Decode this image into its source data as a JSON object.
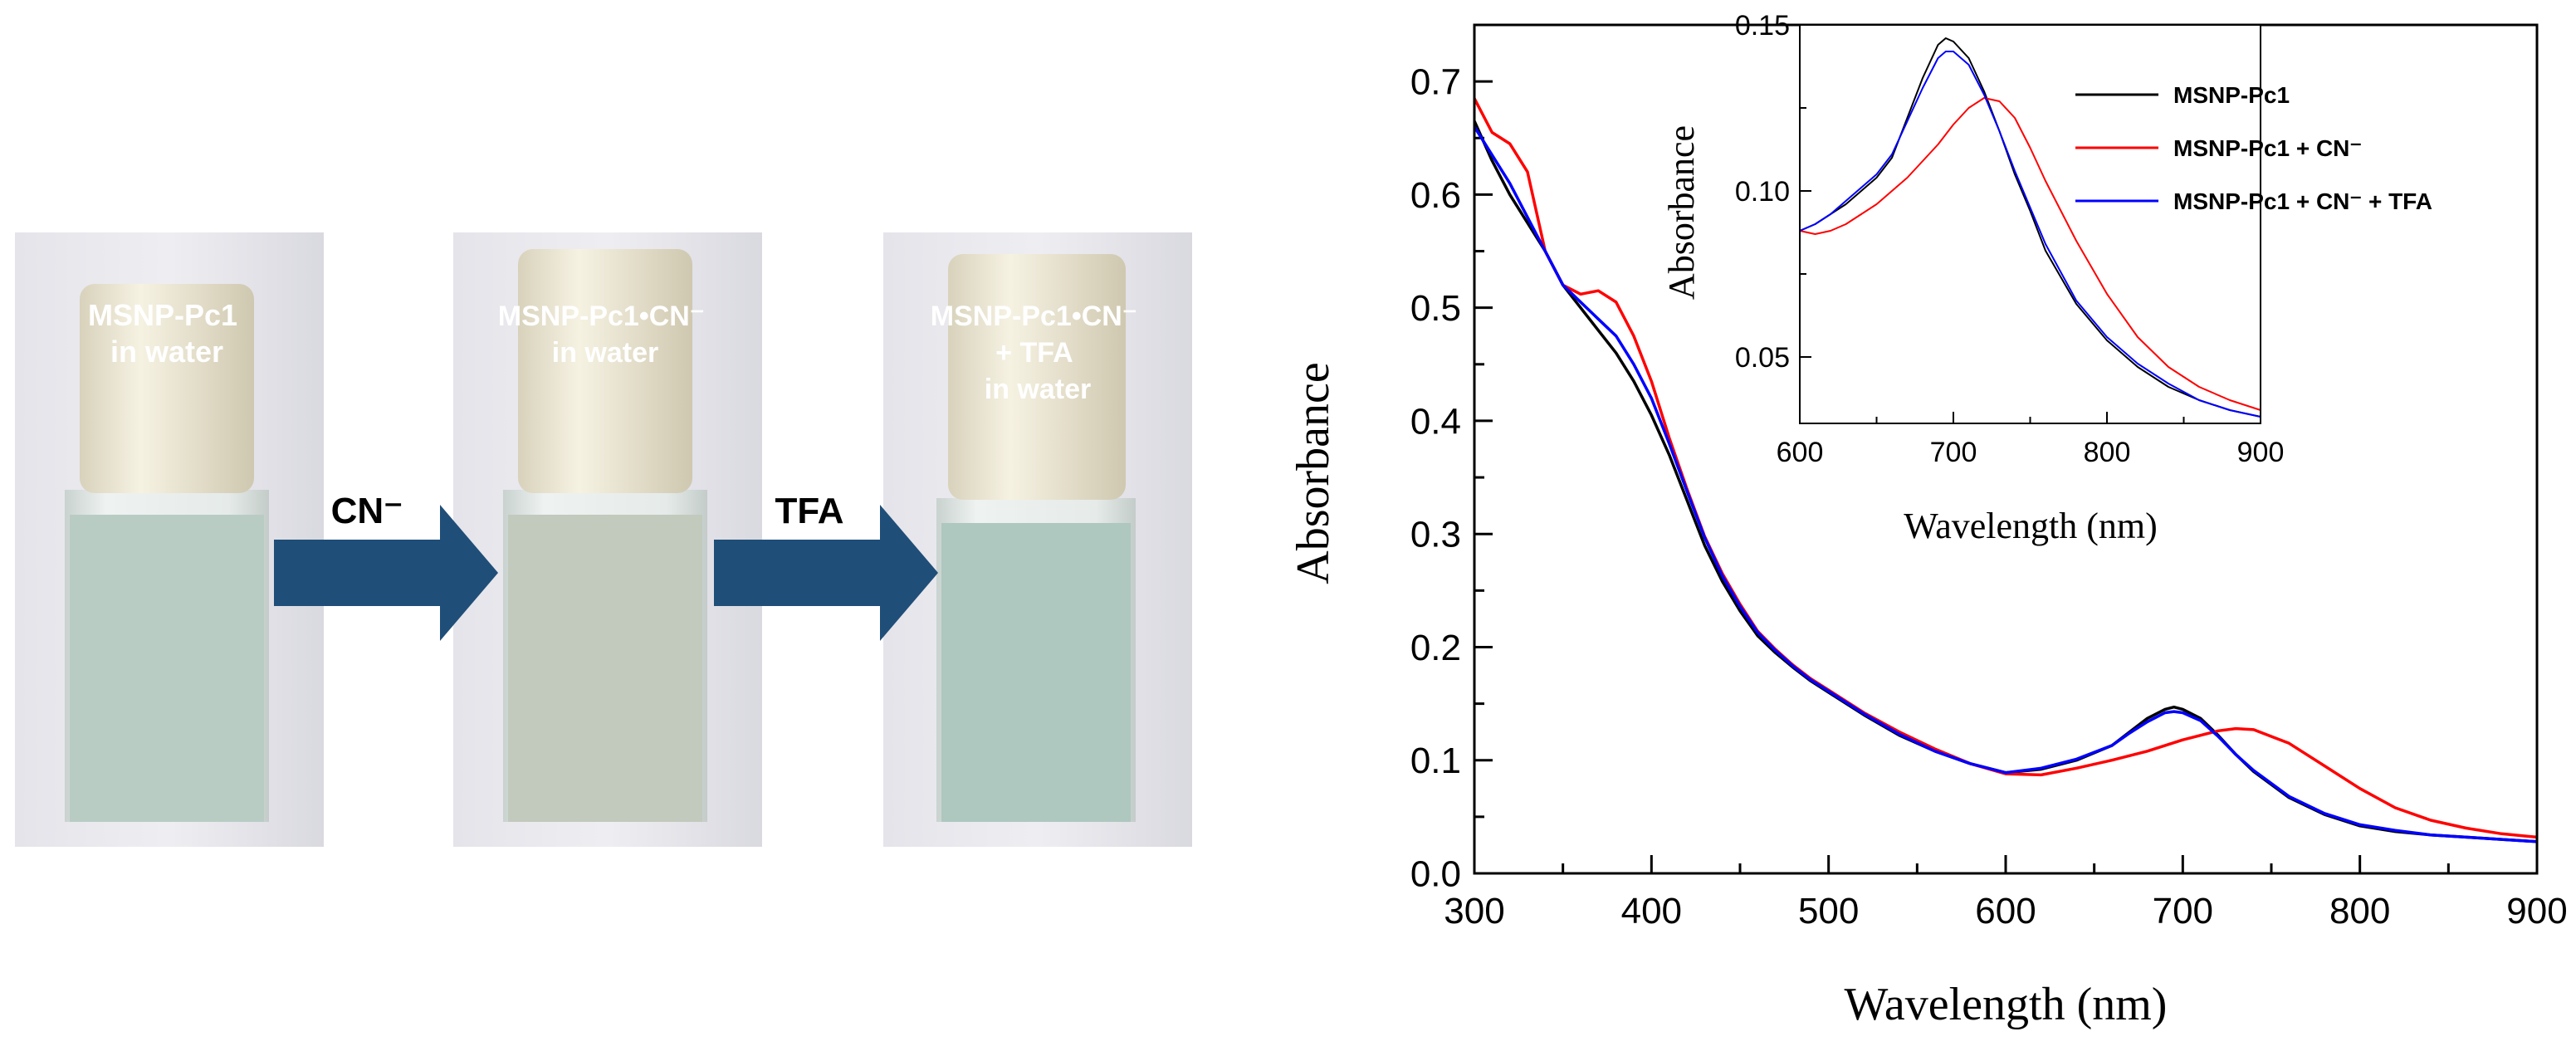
{
  "photos": {
    "vials": [
      {
        "label_lines": [
          "MSNP-Pc1",
          "in water"
        ],
        "liquid_color": "#b8ccc3"
      },
      {
        "label_lines": [
          "MSNP-Pc1•CN⁻",
          "in water"
        ],
        "liquid_color": "#c2c9bd"
      },
      {
        "label_lines": [
          "MSNP-Pc1•CN⁻",
          "+ TFA",
          "in water"
        ],
        "liquid_color": "#aec7bf"
      }
    ],
    "arrows": [
      {
        "label": "CN⁻"
      },
      {
        "label": "TFA"
      }
    ],
    "arrow_color": "#1f4e79"
  },
  "chart_data": [
    {
      "name": "main",
      "type": "line",
      "xlabel": "Wavelength (nm)",
      "ylabel": "Absorbance",
      "xlim": [
        300,
        900
      ],
      "ylim": [
        0.0,
        0.75
      ],
      "xticks": [
        300,
        400,
        500,
        600,
        700,
        800,
        900
      ],
      "yticks": [
        0.0,
        0.1,
        0.2,
        0.3,
        0.4,
        0.5,
        0.6,
        0.7
      ],
      "ytick_labels": [
        "0.0",
        "0.1",
        "0.2",
        "0.3",
        "0.4",
        "0.5",
        "0.6",
        "0.7"
      ],
      "series": [
        {
          "name": "MSNP-Pc1",
          "color": "#000000",
          "x": [
            300,
            310,
            320,
            330,
            340,
            350,
            360,
            370,
            380,
            390,
            400,
            410,
            420,
            430,
            440,
            450,
            460,
            470,
            480,
            490,
            500,
            520,
            540,
            560,
            580,
            600,
            620,
            640,
            660,
            670,
            680,
            690,
            695,
            700,
            710,
            720,
            730,
            740,
            760,
            780,
            800,
            820,
            840,
            860,
            880,
            900
          ],
          "y": [
            0.665,
            0.63,
            0.6,
            0.575,
            0.55,
            0.52,
            0.5,
            0.48,
            0.46,
            0.435,
            0.405,
            0.37,
            0.33,
            0.29,
            0.258,
            0.232,
            0.21,
            0.195,
            0.182,
            0.17,
            0.16,
            0.14,
            0.122,
            0.108,
            0.097,
            0.089,
            0.092,
            0.1,
            0.113,
            0.125,
            0.137,
            0.145,
            0.147,
            0.145,
            0.137,
            0.122,
            0.105,
            0.09,
            0.067,
            0.052,
            0.042,
            0.037,
            0.034,
            0.032,
            0.03,
            0.028
          ]
        },
        {
          "name": "MSNP-Pc1 + CN⁻",
          "color": "#ff0000",
          "x": [
            300,
            310,
            320,
            330,
            340,
            350,
            360,
            370,
            380,
            390,
            400,
            410,
            420,
            430,
            440,
            450,
            460,
            470,
            480,
            490,
            500,
            520,
            540,
            560,
            580,
            600,
            620,
            640,
            660,
            680,
            700,
            720,
            730,
            740,
            760,
            780,
            800,
            820,
            840,
            860,
            880,
            900
          ],
          "y": [
            0.685,
            0.655,
            0.645,
            0.62,
            0.55,
            0.52,
            0.512,
            0.515,
            0.505,
            0.475,
            0.435,
            0.385,
            0.34,
            0.298,
            0.265,
            0.238,
            0.214,
            0.198,
            0.184,
            0.172,
            0.162,
            0.142,
            0.125,
            0.11,
            0.097,
            0.088,
            0.087,
            0.093,
            0.1,
            0.108,
            0.118,
            0.126,
            0.128,
            0.127,
            0.115,
            0.095,
            0.075,
            0.058,
            0.047,
            0.04,
            0.035,
            0.032
          ]
        },
        {
          "name": "MSNP-Pc1 + CN⁻ + TFA",
          "color": "#0000ff",
          "x": [
            300,
            310,
            320,
            330,
            340,
            350,
            360,
            370,
            380,
            390,
            400,
            410,
            420,
            430,
            440,
            450,
            460,
            470,
            480,
            490,
            500,
            520,
            540,
            560,
            580,
            600,
            620,
            640,
            660,
            670,
            680,
            690,
            695,
            700,
            710,
            720,
            730,
            740,
            760,
            780,
            800,
            820,
            840,
            860,
            880,
            900
          ],
          "y": [
            0.66,
            0.635,
            0.61,
            0.58,
            0.55,
            0.52,
            0.505,
            0.49,
            0.475,
            0.45,
            0.42,
            0.38,
            0.338,
            0.297,
            0.263,
            0.236,
            0.213,
            0.197,
            0.183,
            0.171,
            0.161,
            0.141,
            0.123,
            0.108,
            0.097,
            0.089,
            0.093,
            0.101,
            0.113,
            0.124,
            0.134,
            0.142,
            0.143,
            0.142,
            0.135,
            0.121,
            0.105,
            0.091,
            0.068,
            0.053,
            0.043,
            0.038,
            0.034,
            0.032,
            0.03,
            0.028
          ]
        }
      ]
    },
    {
      "name": "inset",
      "type": "line",
      "xlabel": "Wavelength (nm)",
      "ylabel": "Absorbance",
      "xlim": [
        600,
        900
      ],
      "ylim": [
        0.03,
        0.15
      ],
      "xticks": [
        600,
        700,
        800,
        900
      ],
      "yticks": [
        0.05,
        0.1,
        0.15
      ],
      "ytick_labels": [
        "0.05",
        "0.10",
        "0.15"
      ],
      "legend": "top-right",
      "series": [
        {
          "name": "MSNP-Pc1",
          "color": "#000000",
          "x": [
            600,
            610,
            620,
            630,
            640,
            650,
            660,
            670,
            680,
            690,
            695,
            700,
            710,
            720,
            730,
            740,
            750,
            760,
            780,
            800,
            820,
            840,
            860,
            880,
            900
          ],
          "y": [
            0.088,
            0.09,
            0.093,
            0.096,
            0.1,
            0.104,
            0.11,
            0.122,
            0.134,
            0.144,
            0.146,
            0.145,
            0.14,
            0.13,
            0.118,
            0.105,
            0.094,
            0.082,
            0.066,
            0.055,
            0.047,
            0.041,
            0.037,
            0.034,
            0.032
          ]
        },
        {
          "name": "MSNP-Pc1 + CN⁻",
          "color": "#ff0000",
          "x": [
            600,
            610,
            620,
            630,
            640,
            650,
            660,
            670,
            680,
            690,
            700,
            710,
            720,
            730,
            740,
            750,
            760,
            780,
            800,
            820,
            840,
            860,
            880,
            900
          ],
          "y": [
            0.088,
            0.087,
            0.088,
            0.09,
            0.093,
            0.096,
            0.1,
            0.104,
            0.109,
            0.114,
            0.12,
            0.125,
            0.128,
            0.127,
            0.122,
            0.113,
            0.103,
            0.085,
            0.069,
            0.056,
            0.047,
            0.041,
            0.037,
            0.034
          ]
        },
        {
          "name": "MSNP-Pc1 + CN⁻ + TFA",
          "color": "#0000ff",
          "x": [
            600,
            610,
            620,
            630,
            640,
            650,
            660,
            670,
            680,
            690,
            695,
            700,
            710,
            720,
            730,
            740,
            750,
            760,
            780,
            800,
            820,
            840,
            860,
            880,
            900
          ],
          "y": [
            0.088,
            0.09,
            0.093,
            0.097,
            0.101,
            0.105,
            0.111,
            0.121,
            0.131,
            0.14,
            0.142,
            0.142,
            0.138,
            0.129,
            0.118,
            0.106,
            0.095,
            0.084,
            0.067,
            0.056,
            0.048,
            0.042,
            0.037,
            0.034,
            0.032
          ]
        }
      ]
    }
  ]
}
